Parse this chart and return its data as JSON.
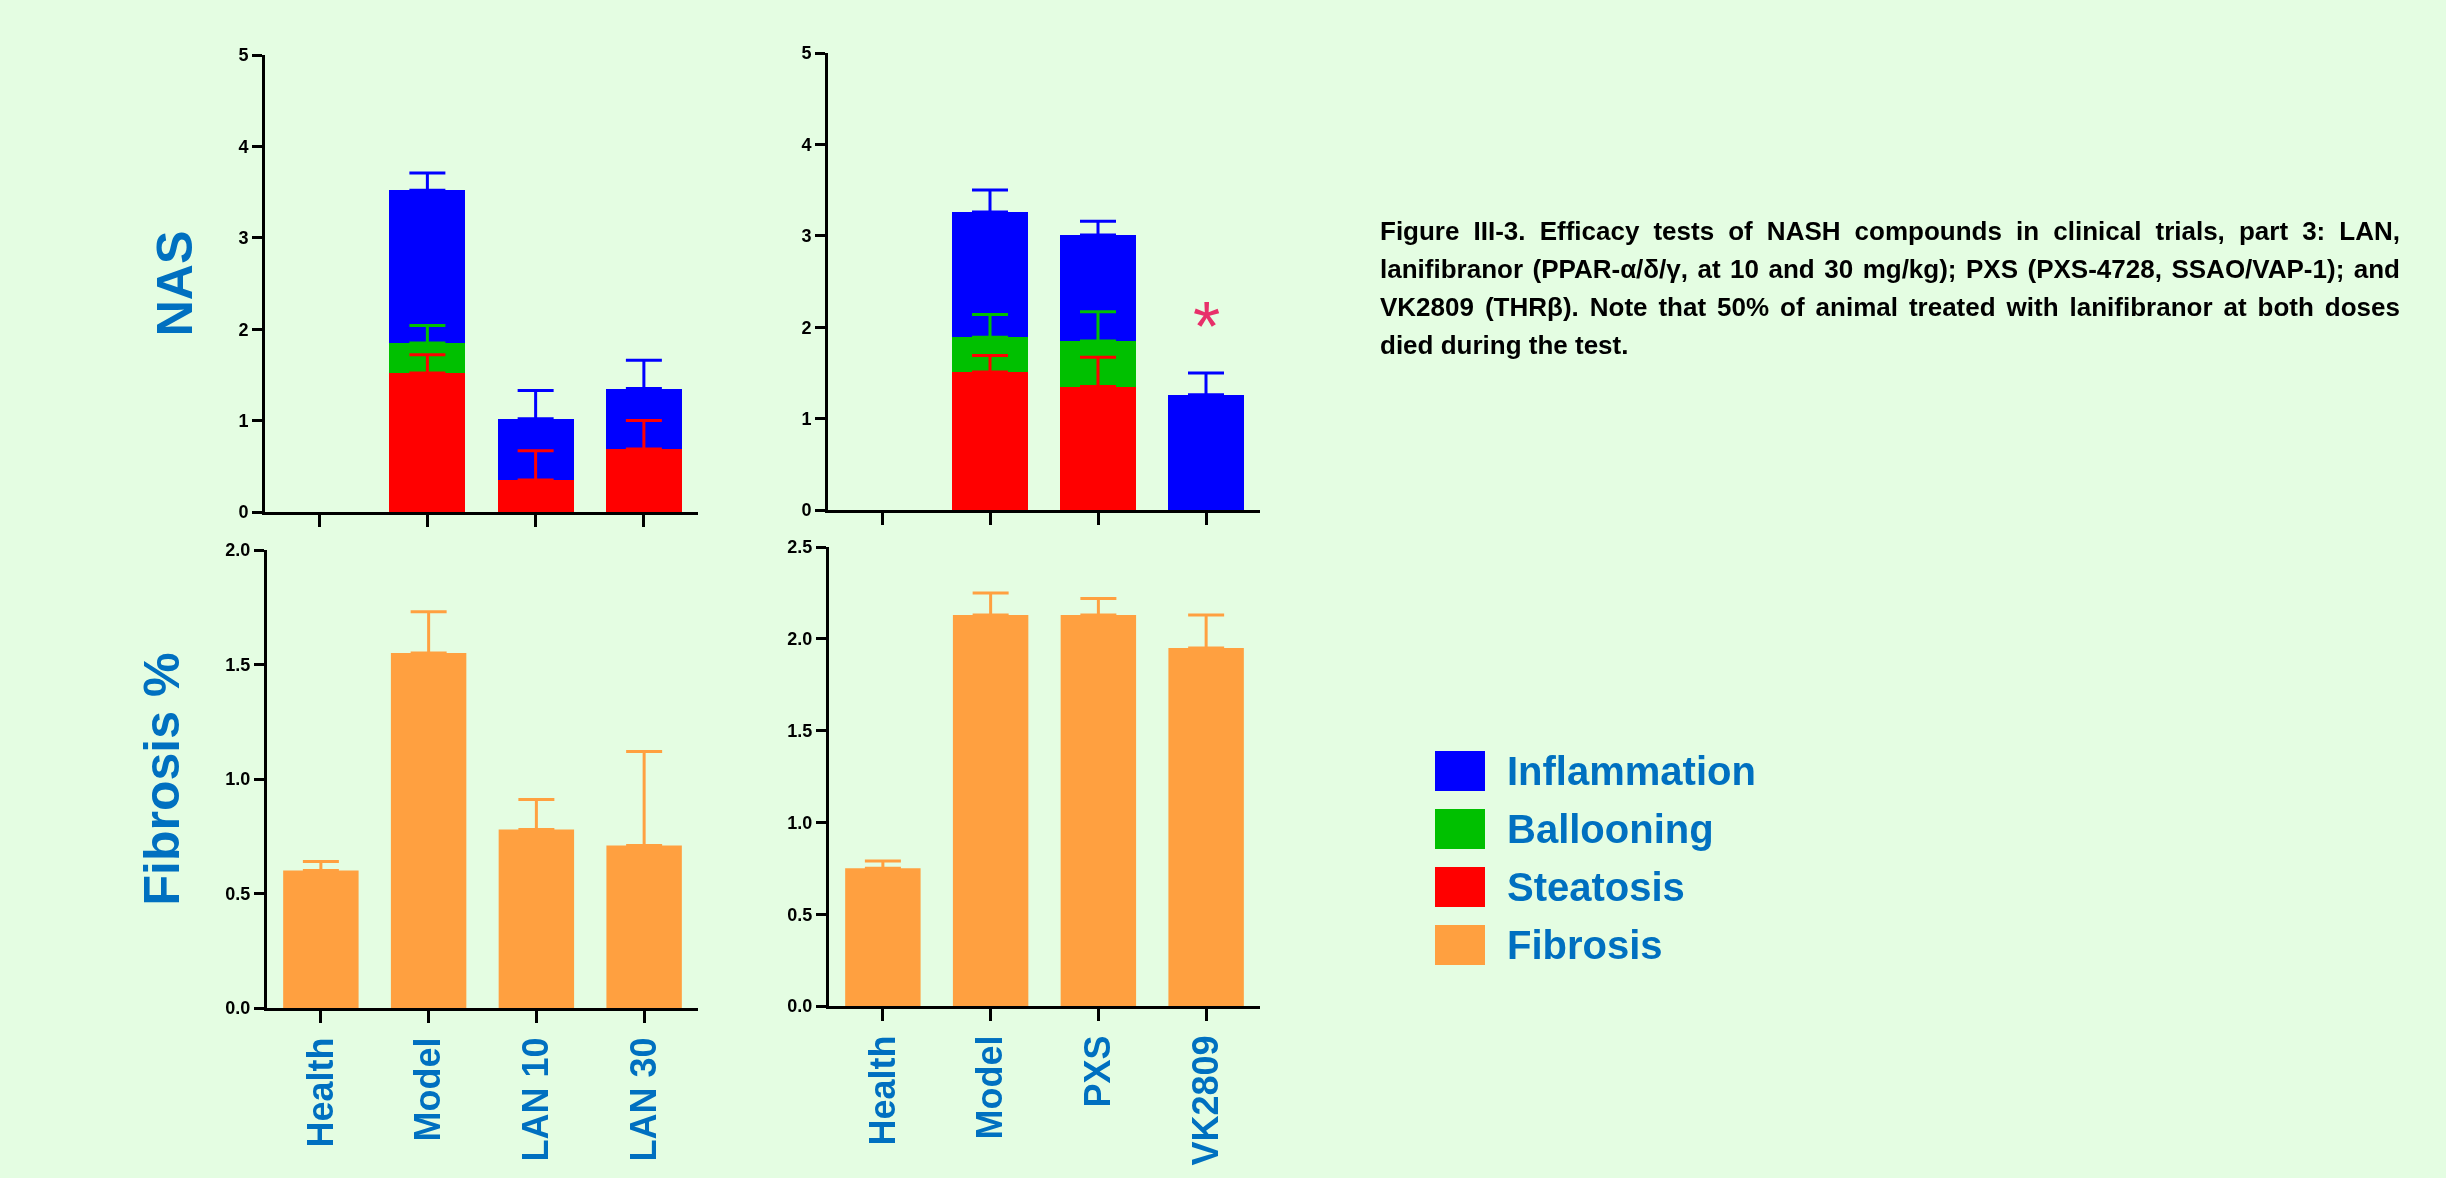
{
  "chart_data": [
    {
      "type": "bar",
      "stacked": true,
      "ylabel": "NAS",
      "categories": [
        "Health",
        "Model",
        "LAN 10",
        "LAN 30"
      ],
      "ylim": [
        0,
        5
      ],
      "yticks": [
        0,
        1,
        2,
        3,
        4,
        5
      ],
      "tick_labels": "y",
      "grid": false,
      "legend": "right",
      "series": [
        {
          "name": "Steatosis",
          "color": "#ff0000",
          "values": [
            null,
            1.52,
            0.35,
            0.69
          ],
          "errors": [
            null,
            [
              1.52,
              1.72
            ],
            [
              0.35,
              0.67
            ],
            [
              0.69,
              1.0
            ]
          ]
        },
        {
          "name": "Ballooning",
          "color": "#00c000",
          "values": [
            null,
            0.33,
            null,
            null
          ],
          "errors": [
            null,
            [
              1.85,
              2.04
            ],
            null,
            null
          ]
        },
        {
          "name": "Inflammation",
          "color": "#0000ff",
          "values": [
            null,
            1.67,
            0.67,
            0.66
          ],
          "errors": [
            null,
            [
              3.52,
              3.71
            ],
            [
              1.02,
              1.33
            ],
            [
              1.35,
              1.66
            ]
          ]
        }
      ]
    },
    {
      "type": "bar",
      "stacked": true,
      "categories": [
        "Health",
        "Model",
        "PXS",
        "VK2809"
      ],
      "ylim": [
        0,
        5
      ],
      "yticks": [
        0,
        1,
        2,
        3,
        4,
        5
      ],
      "tick_labels": "y",
      "grid": false,
      "legend": "right",
      "annotations": [
        {
          "text": "*",
          "x": "VK2809",
          "y": 1.55
        },
        "Figure III-3. Efficacy tests of NASH compounds in clinical trials, part 3: LAN, lanifibranor (PPAR-α/δ/γ, at 10 and 30 mg/kg); PXS (PXS-4728, SSAO/VAP-1); and VK2809 (THRβ). Note that 50% of animal treated with lanifibranor at both doses died during the test."
      ],
      "series": [
        {
          "name": "Steatosis",
          "color": "#ff0000",
          "values": [
            null,
            1.51,
            1.35,
            null
          ],
          "errors": [
            null,
            [
              1.51,
              1.69
            ],
            [
              1.35,
              1.67
            ],
            null
          ]
        },
        {
          "name": "Ballooning",
          "color": "#00c000",
          "values": [
            null,
            0.38,
            0.5,
            null
          ],
          "errors": [
            null,
            [
              1.89,
              2.14
            ],
            [
              1.85,
              2.17
            ],
            null
          ]
        },
        {
          "name": "Inflammation",
          "color": "#0000ff",
          "values": [
            null,
            1.37,
            1.16,
            1.26
          ],
          "errors": [
            null,
            [
              3.26,
              3.5
            ],
            [
              3.01,
              3.16
            ],
            [
              1.26,
              1.5
            ]
          ]
        }
      ]
    },
    {
      "type": "bar",
      "ylabel": "Fibrosis %",
      "categories": [
        "Health",
        "Model",
        "LAN 10",
        "LAN 30"
      ],
      "ylim": [
        0,
        2
      ],
      "yticks": [
        {
          "value": 0,
          "label": "0.0"
        },
        {
          "value": 0.5,
          "label": "0.5"
        },
        {
          "value": 1,
          "label": "1.0"
        },
        {
          "value": 1.5,
          "label": "1.5"
        },
        {
          "value": 2,
          "label": "2.0"
        }
      ],
      "grid": false,
      "legend": "right",
      "series": [
        {
          "name": "Fibrosis",
          "color": "#ffa040",
          "values": [
            0.6,
            1.55,
            0.78,
            0.71
          ],
          "errors": [
            [
              0.6,
              0.64
            ],
            [
              1.55,
              1.73
            ],
            [
              0.78,
              0.91
            ],
            [
              0.71,
              1.12
            ]
          ]
        }
      ]
    },
    {
      "type": "bar",
      "categories": [
        "Health",
        "Model",
        "PXS",
        "VK2809"
      ],
      "ylim": [
        0,
        2.5
      ],
      "yticks": [
        {
          "value": 0,
          "label": "0.0"
        },
        {
          "value": 0.5,
          "label": "0.5"
        },
        {
          "value": 1,
          "label": "1.0"
        },
        {
          "value": 1.5,
          "label": "1.5"
        },
        {
          "value": 2,
          "label": "2.0"
        },
        {
          "value": 2.5,
          "label": "2.5"
        }
      ],
      "grid": false,
      "legend": "right",
      "series": [
        {
          "name": "Fibrosis",
          "color": "#ffa040",
          "values": [
            0.75,
            2.13,
            2.13,
            1.95
          ],
          "errors": [
            [
              0.75,
              0.79
            ],
            [
              2.13,
              2.25
            ],
            [
              2.13,
              2.22
            ],
            [
              1.95,
              2.13
            ]
          ]
        }
      ]
    }
  ]
}
